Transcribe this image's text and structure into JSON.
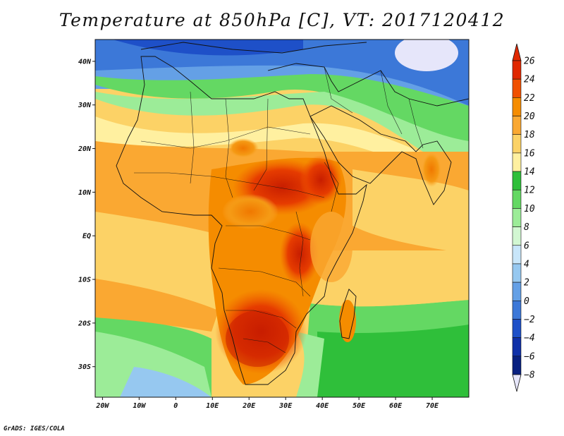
{
  "title": "Temperature at 850hPa [C], VT: 2017120412",
  "credit": "GrADS: IGES/COLA",
  "map": {
    "lon_range": [
      -22,
      80
    ],
    "lat_range": [
      -37,
      45
    ],
    "lon_ticks": [
      {
        "value": -20,
        "label": "20W"
      },
      {
        "value": -10,
        "label": "10W"
      },
      {
        "value": 0,
        "label": "0"
      },
      {
        "value": 10,
        "label": "10E"
      },
      {
        "value": 20,
        "label": "20E"
      },
      {
        "value": 30,
        "label": "30E"
      },
      {
        "value": 40,
        "label": "40E"
      },
      {
        "value": 50,
        "label": "50E"
      },
      {
        "value": 60,
        "label": "60E"
      },
      {
        "value": 70,
        "label": "70E"
      }
    ],
    "lat_ticks": [
      {
        "value": 40,
        "label": "40N"
      },
      {
        "value": 30,
        "label": "30N"
      },
      {
        "value": 20,
        "label": "20N"
      },
      {
        "value": 10,
        "label": "10N"
      },
      {
        "value": 0,
        "label": "EQ"
      },
      {
        "value": -10,
        "label": "10S"
      },
      {
        "value": -20,
        "label": "20S"
      },
      {
        "value": -30,
        "label": "30S"
      }
    ]
  },
  "colorbar": {
    "levels": [
      26,
      24,
      22,
      20,
      18,
      16,
      14,
      12,
      10,
      8,
      6,
      4,
      2,
      0,
      -2,
      -4,
      -6,
      -8
    ],
    "colors": [
      "#a50000",
      "#e02800",
      "#f05000",
      "#f58c00",
      "#faa832",
      "#fcd266",
      "#fff0a0",
      "#2fbf3a",
      "#64d863",
      "#9cec98",
      "#d2f7d2",
      "#c8e6fa",
      "#96c8f0",
      "#64a0e6",
      "#3c78d8",
      "#1e50c8",
      "#0f30a8",
      "#082080",
      "#e6e6fa"
    ],
    "top_color": "#e02800",
    "bottom_color": "#e6e6fa"
  }
}
